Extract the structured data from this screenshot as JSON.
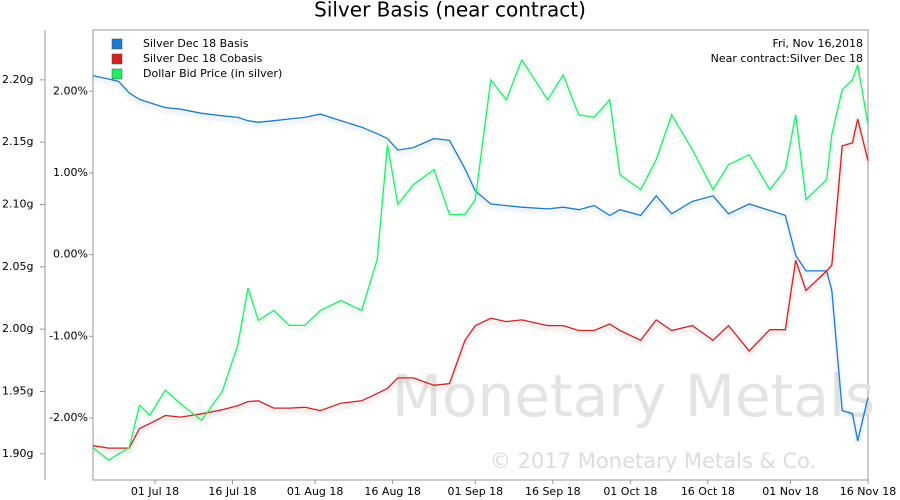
{
  "chart_data": {
    "type": "line",
    "title": "Silver Basis (near contract)",
    "annotations": [
      "Fri, Nov 16,2018",
      "Near contract:Silver Dec 18",
      "Monetary Metals",
      "© 2017 Monetary Metals & Co."
    ],
    "x": [
      "2018-06-19",
      "2018-06-22",
      "2018-06-24",
      "2018-06-26",
      "2018-06-28",
      "2018-06-30",
      "2018-07-03",
      "2018-07-06",
      "2018-07-10",
      "2018-07-14",
      "2018-07-17",
      "2018-07-19",
      "2018-07-21",
      "2018-07-24",
      "2018-07-27",
      "2018-07-30",
      "2018-08-02",
      "2018-08-06",
      "2018-08-10",
      "2018-08-13",
      "2018-08-15",
      "2018-08-17",
      "2018-08-20",
      "2018-08-24",
      "2018-08-27",
      "2018-08-30",
      "2018-09-01",
      "2018-09-04",
      "2018-09-07",
      "2018-09-10",
      "2018-09-15",
      "2018-09-18",
      "2018-09-21",
      "2018-09-24",
      "2018-09-27",
      "2018-09-29",
      "2018-10-03",
      "2018-10-06",
      "2018-10-09",
      "2018-10-13",
      "2018-10-17",
      "2018-10-20",
      "2018-10-24",
      "2018-10-28",
      "2018-10-31",
      "2018-11-02",
      "2018-11-04",
      "2018-11-08",
      "2018-11-09",
      "2018-11-11",
      "2018-11-13",
      "2018-11-14",
      "2018-11-16"
    ],
    "xlim": [
      "2018-06-19",
      "2018-11-16"
    ],
    "xticks": [
      {
        "value": "2018-07-01",
        "label": "01 Jul 18"
      },
      {
        "value": "2018-07-16",
        "label": "16 Jul 18"
      },
      {
        "value": "2018-08-01",
        "label": "01 Aug 18"
      },
      {
        "value": "2018-08-16",
        "label": "16 Aug 18"
      },
      {
        "value": "2018-09-01",
        "label": "01 Sep 18"
      },
      {
        "value": "2018-09-16",
        "label": "16 Sep 18"
      },
      {
        "value": "2018-10-01",
        "label": "01 Oct 18"
      },
      {
        "value": "2018-10-16",
        "label": "16 Oct 18"
      },
      {
        "value": "2018-11-01",
        "label": "01 Nov 18"
      },
      {
        "value": "2018-11-16",
        "label": "16 Nov 18"
      }
    ],
    "ylim": [
      1.879,
      2.24
    ],
    "yticks": [
      {
        "value": 1.9,
        "label": "1.90g"
      },
      {
        "value": 1.95,
        "label": "1.95g"
      },
      {
        "value": 2.0,
        "label": "2.00g"
      },
      {
        "value": 2.05,
        "label": "2.05g"
      },
      {
        "value": 2.1,
        "label": "2.10g"
      },
      {
        "value": 2.15,
        "label": "2.15g"
      },
      {
        "value": 2.2,
        "label": "2.20g"
      }
    ],
    "y2lim": [
      -2.76,
      2.75
    ],
    "y2ticks": [
      {
        "value": -2,
        "label": "-2.00%"
      },
      {
        "value": -1,
        "label": "-1.00%"
      },
      {
        "value": 0,
        "label": "0.00%"
      },
      {
        "value": 1,
        "label": "1.00%"
      },
      {
        "value": 2,
        "label": "2.00%"
      }
    ],
    "legend": "top-left",
    "series": [
      {
        "name": "Silver Dec 18 Basis",
        "color": "#1f78d1",
        "axis": "y2",
        "values": [
          2.19,
          2.15,
          2.12,
          1.98,
          1.9,
          1.86,
          1.8,
          1.78,
          1.73,
          1.7,
          1.68,
          1.64,
          1.62,
          1.64,
          1.66,
          1.68,
          1.72,
          1.64,
          1.56,
          1.48,
          1.42,
          1.28,
          1.31,
          1.42,
          1.4,
          1.05,
          0.78,
          0.62,
          0.6,
          0.58,
          0.56,
          0.58,
          0.55,
          0.6,
          0.48,
          0.55,
          0.48,
          0.72,
          0.5,
          0.65,
          0.72,
          0.5,
          0.62,
          0.54,
          0.48,
          -0.01,
          -0.2,
          -0.2,
          -0.44,
          -1.91,
          -1.95,
          -2.28,
          -1.75
        ]
      },
      {
        "name": "Silver Dec 18 Cobasis",
        "color": "#d42020",
        "axis": "y2",
        "values": [
          -2.34,
          -2.37,
          -2.37,
          -2.37,
          -2.13,
          -2.07,
          -1.97,
          -1.99,
          -1.95,
          -1.9,
          -1.85,
          -1.8,
          -1.79,
          -1.88,
          -1.88,
          -1.87,
          -1.91,
          -1.82,
          -1.79,
          -1.7,
          -1.64,
          -1.51,
          -1.51,
          -1.6,
          -1.58,
          -1.05,
          -0.87,
          -0.78,
          -0.82,
          -0.8,
          -0.87,
          -0.87,
          -0.93,
          -0.93,
          -0.85,
          -0.93,
          -1.05,
          -0.8,
          -0.93,
          -0.87,
          -1.05,
          -0.87,
          -1.18,
          -0.92,
          -0.92,
          -0.07,
          -0.44,
          -0.2,
          -0.13,
          1.33,
          1.37,
          1.66,
          1.15
        ]
      },
      {
        "name": "Dollar Bid Price (in silver)",
        "color": "#22ee66",
        "axis": "y",
        "values": [
          1.905,
          1.895,
          1.9,
          1.905,
          1.939,
          1.931,
          1.951,
          1.94,
          1.927,
          1.95,
          1.987,
          2.033,
          2.007,
          2.015,
          2.003,
          2.003,
          2.015,
          2.023,
          2.015,
          2.056,
          2.148,
          2.1,
          2.116,
          2.128,
          2.092,
          2.092,
          2.104,
          2.2,
          2.184,
          2.216,
          2.184,
          2.204,
          2.172,
          2.17,
          2.184,
          2.124,
          2.112,
          2.136,
          2.172,
          2.144,
          2.112,
          2.132,
          2.14,
          2.112,
          2.128,
          2.172,
          2.104,
          2.12,
          2.156,
          2.192,
          2.2,
          2.212,
          2.164
        ]
      }
    ]
  }
}
